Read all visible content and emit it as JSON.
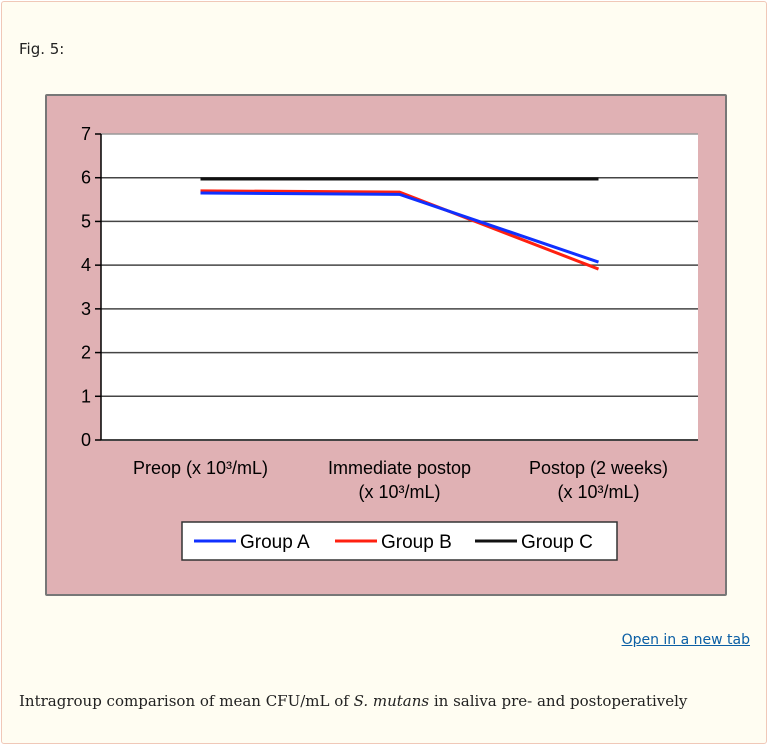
{
  "figure_label": "Fig. 5:",
  "open_link": "Open in a new tab",
  "caption": {
    "before": "Intragroup comparison of mean CFU/mL of ",
    "italic": "S. mutans",
    "after": " in saliva pre- and postoperatively"
  },
  "chart_data": {
    "type": "line",
    "categories": [
      [
        "Preop (x 10³/mL)"
      ],
      [
        "Immediate postop",
        "(x 10³/mL)"
      ],
      [
        "Postop (2 weeks)",
        "(x 10³/mL)"
      ]
    ],
    "ylim": [
      0,
      7
    ],
    "yticks": [
      0,
      1,
      2,
      3,
      4,
      5,
      6,
      7
    ],
    "grid": true,
    "legend": "bottom",
    "series": [
      {
        "name": "Group A",
        "color": "#1030ff",
        "values": [
          5.65,
          5.62,
          4.07
        ]
      },
      {
        "name": "Group B",
        "color": "#ff2010",
        "values": [
          5.7,
          5.67,
          3.91
        ]
      },
      {
        "name": "Group C",
        "color": "#111111",
        "values": [
          5.97,
          5.97,
          5.97
        ]
      }
    ]
  }
}
